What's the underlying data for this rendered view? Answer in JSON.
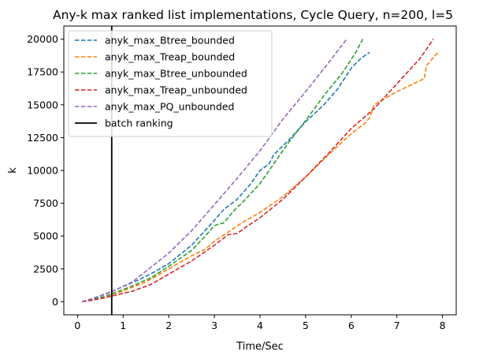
{
  "chart_data": {
    "type": "line",
    "title": "Any-k max ranked list implementations, Cycle Query, n=200, l=5",
    "xlabel": "Time/Sec",
    "ylabel": "k",
    "xlim": [
      -0.3,
      8.3
    ],
    "ylim": [
      -1000,
      21000
    ],
    "xticks": [
      0,
      1,
      2,
      3,
      4,
      5,
      6,
      7,
      8
    ],
    "yticks": [
      0,
      2500,
      5000,
      7500,
      10000,
      12500,
      15000,
      17500,
      20000
    ],
    "legend_position": "upper-left",
    "grid": false,
    "series": [
      {
        "name": "anyk_max_Btree_bounded",
        "color": "#1f77b4",
        "style": "dashed",
        "points": [
          [
            0.1,
            0
          ],
          [
            0.3,
            200
          ],
          [
            0.5,
            450
          ],
          [
            0.8,
            850
          ],
          [
            1.0,
            1150
          ],
          [
            1.3,
            1600
          ],
          [
            1.6,
            2100
          ],
          [
            2.0,
            2900
          ],
          [
            2.5,
            4300
          ],
          [
            3.0,
            6200
          ],
          [
            3.2,
            7000
          ],
          [
            3.5,
            7800
          ],
          [
            3.8,
            9000
          ],
          [
            4.0,
            10000
          ],
          [
            4.2,
            10500
          ],
          [
            4.3,
            11200
          ],
          [
            4.6,
            12200
          ],
          [
            5.0,
            13700
          ],
          [
            5.4,
            15000
          ],
          [
            5.7,
            16200
          ],
          [
            6.0,
            17800
          ],
          [
            6.2,
            18500
          ],
          [
            6.4,
            19000
          ]
        ]
      },
      {
        "name": "anyk_max_Treap_bounded",
        "color": "#ff7f0e",
        "style": "dashed",
        "points": [
          [
            0.1,
            0
          ],
          [
            0.3,
            100
          ],
          [
            0.6,
            400
          ],
          [
            0.9,
            700
          ],
          [
            1.2,
            1100
          ],
          [
            1.5,
            1500
          ],
          [
            2.0,
            2500
          ],
          [
            2.5,
            3500
          ],
          [
            2.8,
            4000
          ],
          [
            3.0,
            4600
          ],
          [
            3.3,
            5300
          ],
          [
            3.6,
            6000
          ],
          [
            4.0,
            6800
          ],
          [
            4.5,
            8000
          ],
          [
            5.0,
            9500
          ],
          [
            5.5,
            11200
          ],
          [
            6.0,
            12800
          ],
          [
            6.3,
            13600
          ],
          [
            6.4,
            14000
          ],
          [
            6.5,
            15000
          ],
          [
            6.8,
            15600
          ],
          [
            7.0,
            16000
          ],
          [
            7.3,
            16500
          ],
          [
            7.6,
            17000
          ],
          [
            7.65,
            18000
          ],
          [
            7.9,
            19000
          ]
        ]
      },
      {
        "name": "anyk_max_Btree_unbounded",
        "color": "#2ca02c",
        "style": "dashed",
        "points": [
          [
            0.1,
            0
          ],
          [
            0.3,
            150
          ],
          [
            0.6,
            400
          ],
          [
            0.9,
            800
          ],
          [
            1.2,
            1200
          ],
          [
            1.6,
            1800
          ],
          [
            2.0,
            2700
          ],
          [
            2.5,
            3900
          ],
          [
            2.8,
            5000
          ],
          [
            3.0,
            5800
          ],
          [
            3.2,
            6000
          ],
          [
            3.5,
            7200
          ],
          [
            3.6,
            7500
          ],
          [
            4.0,
            9000
          ],
          [
            4.3,
            10500
          ],
          [
            4.6,
            12000
          ],
          [
            5.0,
            13800
          ],
          [
            5.4,
            15700
          ],
          [
            5.8,
            17400
          ],
          [
            6.1,
            19000
          ],
          [
            6.25,
            20000
          ]
        ]
      },
      {
        "name": "anyk_max_Treap_unbounded",
        "color": "#d62728",
        "style": "dashed",
        "points": [
          [
            0.1,
            0
          ],
          [
            0.3,
            100
          ],
          [
            0.6,
            300
          ],
          [
            0.9,
            550
          ],
          [
            1.2,
            800
          ],
          [
            1.6,
            1300
          ],
          [
            2.0,
            2100
          ],
          [
            2.5,
            3100
          ],
          [
            3.0,
            4300
          ],
          [
            3.3,
            5100
          ],
          [
            3.5,
            5200
          ],
          [
            3.7,
            5700
          ],
          [
            4.0,
            6400
          ],
          [
            4.5,
            7800
          ],
          [
            5.0,
            9500
          ],
          [
            5.5,
            11300
          ],
          [
            6.0,
            13200
          ],
          [
            6.5,
            14700
          ],
          [
            7.0,
            16600
          ],
          [
            7.5,
            18500
          ],
          [
            7.8,
            20000
          ]
        ]
      },
      {
        "name": "anyk_max_PQ_unbounded",
        "color": "#9467bd",
        "style": "dashed",
        "points": [
          [
            0.1,
            0
          ],
          [
            0.3,
            200
          ],
          [
            0.6,
            550
          ],
          [
            0.9,
            1000
          ],
          [
            1.2,
            1500
          ],
          [
            1.6,
            2600
          ],
          [
            2.0,
            3700
          ],
          [
            2.5,
            5400
          ],
          [
            3.0,
            7400
          ],
          [
            3.5,
            9400
          ],
          [
            4.0,
            11500
          ],
          [
            4.5,
            13900
          ],
          [
            5.0,
            16000
          ],
          [
            5.5,
            18200
          ],
          [
            5.9,
            20000
          ]
        ]
      }
    ],
    "vline": {
      "name": "batch ranking",
      "color": "#000000",
      "style": "solid",
      "x": 0.75
    }
  }
}
